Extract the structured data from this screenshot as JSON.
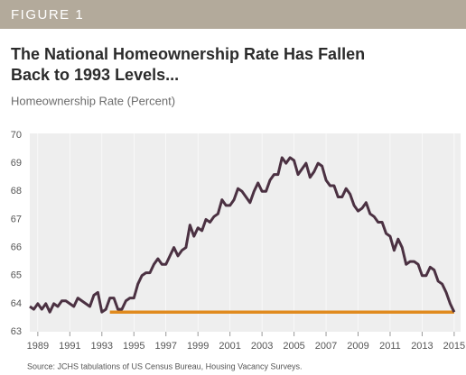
{
  "header": "FIGURE 1",
  "chart_data": {
    "type": "line",
    "title": [
      "The National Homeownership Rate Has Fallen",
      "Back to 1993 Levels..."
    ],
    "subtitle": "Homeownership Rate (Percent)",
    "source": "Source: JCHS tabulations of US Census Bureau, Housing Vacancy Surveys.",
    "x": [
      1988.5,
      1988.75,
      1989,
      1989.25,
      1989.5,
      1989.75,
      1990,
      1990.25,
      1990.5,
      1990.75,
      1991,
      1991.25,
      1991.5,
      1991.75,
      1992,
      1992.25,
      1992.5,
      1992.75,
      1993,
      1993.25,
      1993.5,
      1993.75,
      1994,
      1994.25,
      1994.5,
      1994.75,
      1995,
      1995.25,
      1995.5,
      1995.75,
      1996,
      1996.25,
      1996.5,
      1996.75,
      1997,
      1997.25,
      1997.5,
      1997.75,
      1998,
      1998.25,
      1998.5,
      1998.75,
      1999,
      1999.25,
      1999.5,
      1999.75,
      2000,
      2000.25,
      2000.5,
      2000.75,
      2001,
      2001.25,
      2001.5,
      2001.75,
      2002,
      2002.25,
      2002.5,
      2002.75,
      2003,
      2003.25,
      2003.5,
      2003.75,
      2004,
      2004.25,
      2004.5,
      2004.75,
      2005,
      2005.25,
      2005.5,
      2005.75,
      2006,
      2006.25,
      2006.5,
      2006.75,
      2007,
      2007.25,
      2007.5,
      2007.75,
      2008,
      2008.25,
      2008.5,
      2008.75,
      2009,
      2009.25,
      2009.5,
      2009.75,
      2010,
      2010.25,
      2010.5,
      2010.75,
      2011,
      2011.25,
      2011.5,
      2011.75,
      2012,
      2012.25,
      2012.5,
      2012.75,
      2013,
      2013.25,
      2013.5,
      2013.75,
      2014,
      2014.25,
      2014.5,
      2014.75,
      2015
    ],
    "series": [
      {
        "name": "Homeownership Rate",
        "color": "#4b3142",
        "values": [
          63.9,
          63.8,
          64.0,
          63.8,
          64.0,
          63.7,
          64.0,
          63.9,
          64.1,
          64.1,
          64.0,
          63.9,
          64.2,
          64.1,
          64.0,
          63.9,
          64.3,
          64.4,
          63.7,
          63.8,
          64.2,
          64.2,
          63.8,
          63.8,
          64.1,
          64.2,
          64.2,
          64.7,
          65.0,
          65.1,
          65.1,
          65.4,
          65.6,
          65.4,
          65.4,
          65.7,
          66.0,
          65.7,
          65.9,
          66.0,
          66.8,
          66.4,
          66.7,
          66.6,
          67.0,
          66.9,
          67.1,
          67.2,
          67.7,
          67.5,
          67.5,
          67.7,
          68.1,
          68.0,
          67.8,
          67.6,
          68.0,
          68.3,
          68.0,
          68.0,
          68.4,
          68.6,
          68.6,
          69.2,
          69.0,
          69.2,
          69.1,
          68.6,
          68.8,
          69.0,
          68.5,
          68.7,
          69.0,
          68.9,
          68.4,
          68.2,
          68.2,
          67.8,
          67.8,
          68.1,
          67.9,
          67.5,
          67.3,
          67.4,
          67.6,
          67.2,
          67.1,
          66.9,
          66.9,
          66.5,
          66.4,
          65.9,
          66.3,
          66.0,
          65.4,
          65.5,
          65.5,
          65.4,
          65.0,
          65.0,
          65.3,
          65.2,
          64.8,
          64.7,
          64.4,
          64.0,
          63.7
        ]
      }
    ],
    "reference_line": {
      "value": 63.7,
      "x": [
        1993.5,
        2015.0
      ],
      "color": "#e08a1e"
    },
    "xlim": [
      1988.5,
      2015.4
    ],
    "ylim": [
      63,
      70
    ],
    "xticks": [
      1989,
      1991,
      1993,
      1995,
      1997,
      1999,
      2001,
      2003,
      2005,
      2007,
      2009,
      2011,
      2013,
      2015
    ],
    "yticks": [
      63,
      64,
      65,
      66,
      67,
      68,
      69,
      70
    ]
  }
}
